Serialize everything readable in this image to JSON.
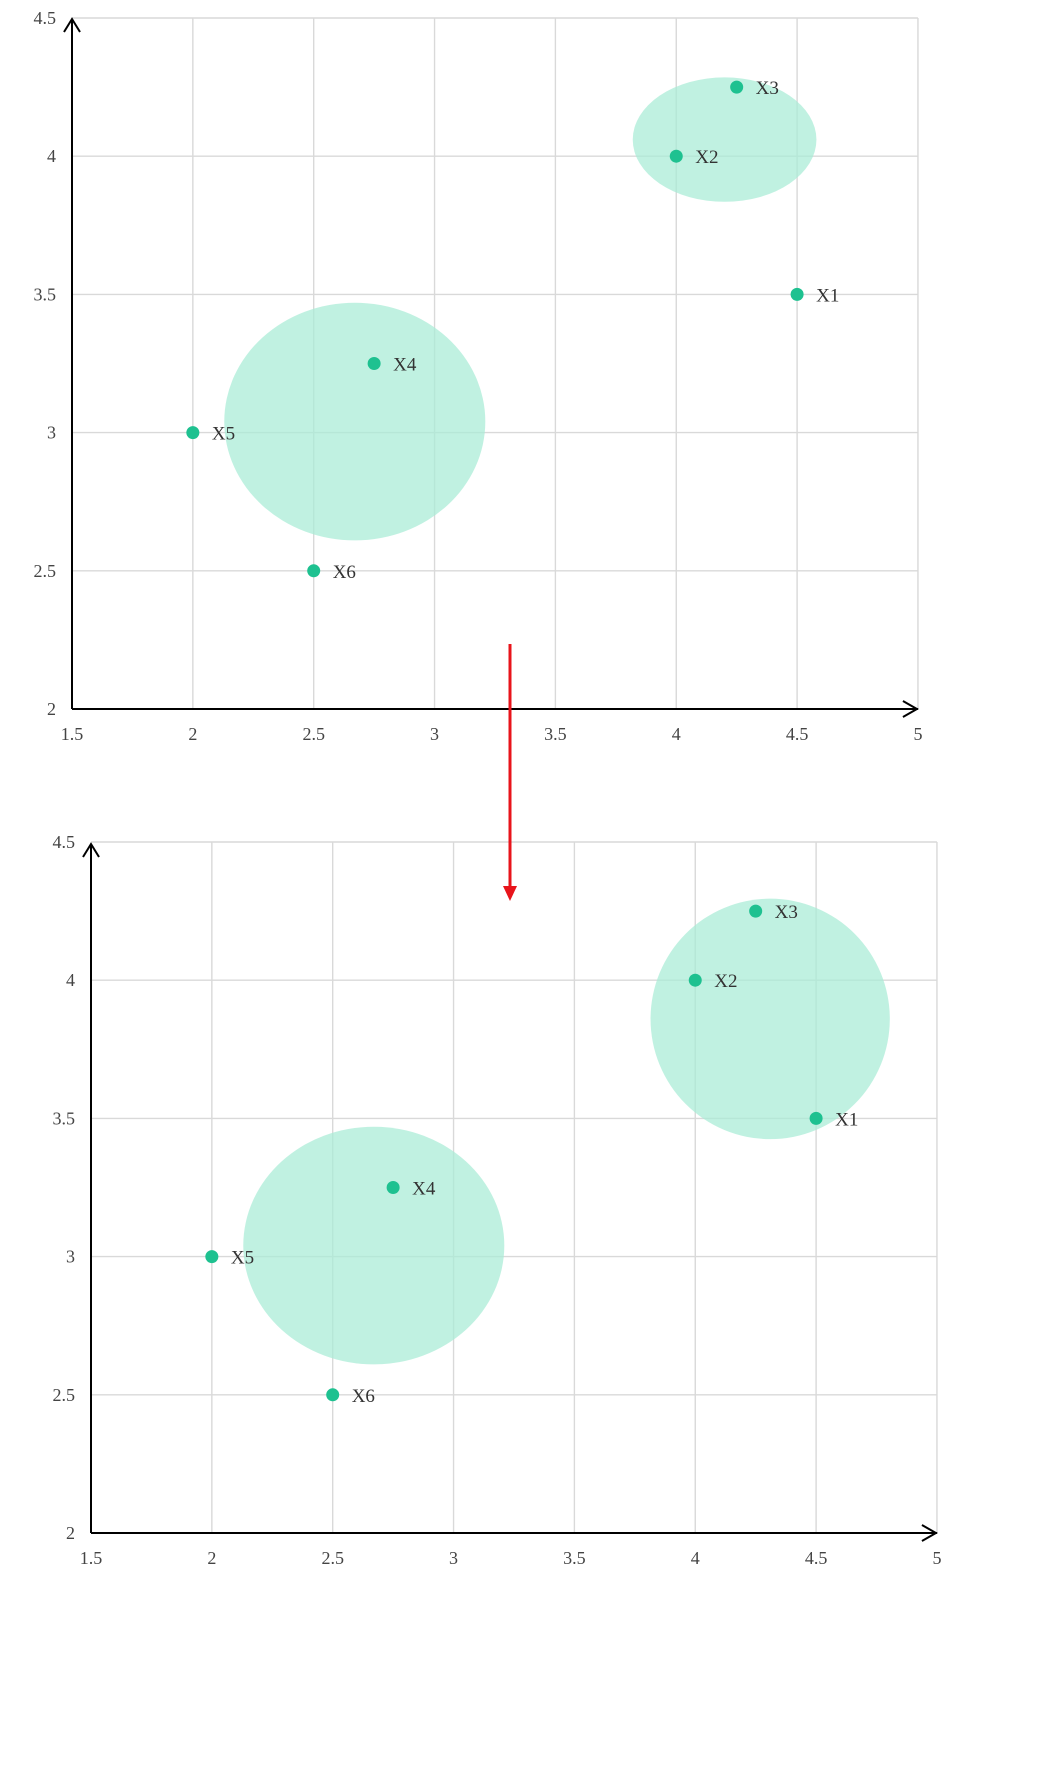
{
  "colors": {
    "point": "#1ec190",
    "cluster_fill": "#a8ecd6",
    "grid": "#d9d9d9",
    "axis": "#000000",
    "arrow": "#e8141b"
  },
  "chart_data": [
    {
      "type": "scatter",
      "xlim": [
        1.5,
        5
      ],
      "ylim": [
        2,
        4.5
      ],
      "x_ticks": [
        "1.5",
        "2",
        "2.5",
        "3",
        "3.5",
        "4",
        "4.5",
        "5"
      ],
      "y_ticks": [
        "2",
        "2.5",
        "3",
        "3.5",
        "4",
        "4.5"
      ],
      "grid": true,
      "points": [
        {
          "label": "X1",
          "x": 4.5,
          "y": 3.5
        },
        {
          "label": "X2",
          "x": 4.0,
          "y": 4.0
        },
        {
          "label": "X3",
          "x": 4.25,
          "y": 4.25
        },
        {
          "label": "X4",
          "x": 2.75,
          "y": 3.25
        },
        {
          "label": "X5",
          "x": 2.0,
          "y": 3.0
        },
        {
          "label": "X6",
          "x": 2.5,
          "y": 2.5
        }
      ],
      "clusters": [
        {
          "members": [
            "X2",
            "X3"
          ],
          "cx": 4.2,
          "cy": 4.06,
          "rx": 0.38,
          "ry": 0.225
        },
        {
          "members": [
            "X4"
          ],
          "cx": 2.67,
          "cy": 3.04,
          "rx": 0.54,
          "ry": 0.43
        }
      ]
    },
    {
      "type": "scatter",
      "xlim": [
        1.5,
        5
      ],
      "ylim": [
        2,
        4.5
      ],
      "x_ticks": [
        "1.5",
        "2",
        "2.5",
        "3",
        "3.5",
        "4",
        "4.5",
        "5"
      ],
      "y_ticks": [
        "2",
        "2.5",
        "3",
        "3.5",
        "4",
        "4.5"
      ],
      "grid": true,
      "points": [
        {
          "label": "X1",
          "x": 4.5,
          "y": 3.5
        },
        {
          "label": "X2",
          "x": 4.0,
          "y": 4.0
        },
        {
          "label": "X3",
          "x": 4.25,
          "y": 4.25
        },
        {
          "label": "X4",
          "x": 2.75,
          "y": 3.25
        },
        {
          "label": "X5",
          "x": 2.0,
          "y": 3.0
        },
        {
          "label": "X6",
          "x": 2.5,
          "y": 2.5
        }
      ],
      "clusters": [
        {
          "members": [
            "X1",
            "X2",
            "X3"
          ],
          "cx": 4.31,
          "cy": 3.86,
          "rx": 0.495,
          "ry": 0.435
        },
        {
          "members": [
            "X4"
          ],
          "cx": 2.67,
          "cy": 3.04,
          "rx": 0.54,
          "ry": 0.43
        }
      ]
    }
  ]
}
